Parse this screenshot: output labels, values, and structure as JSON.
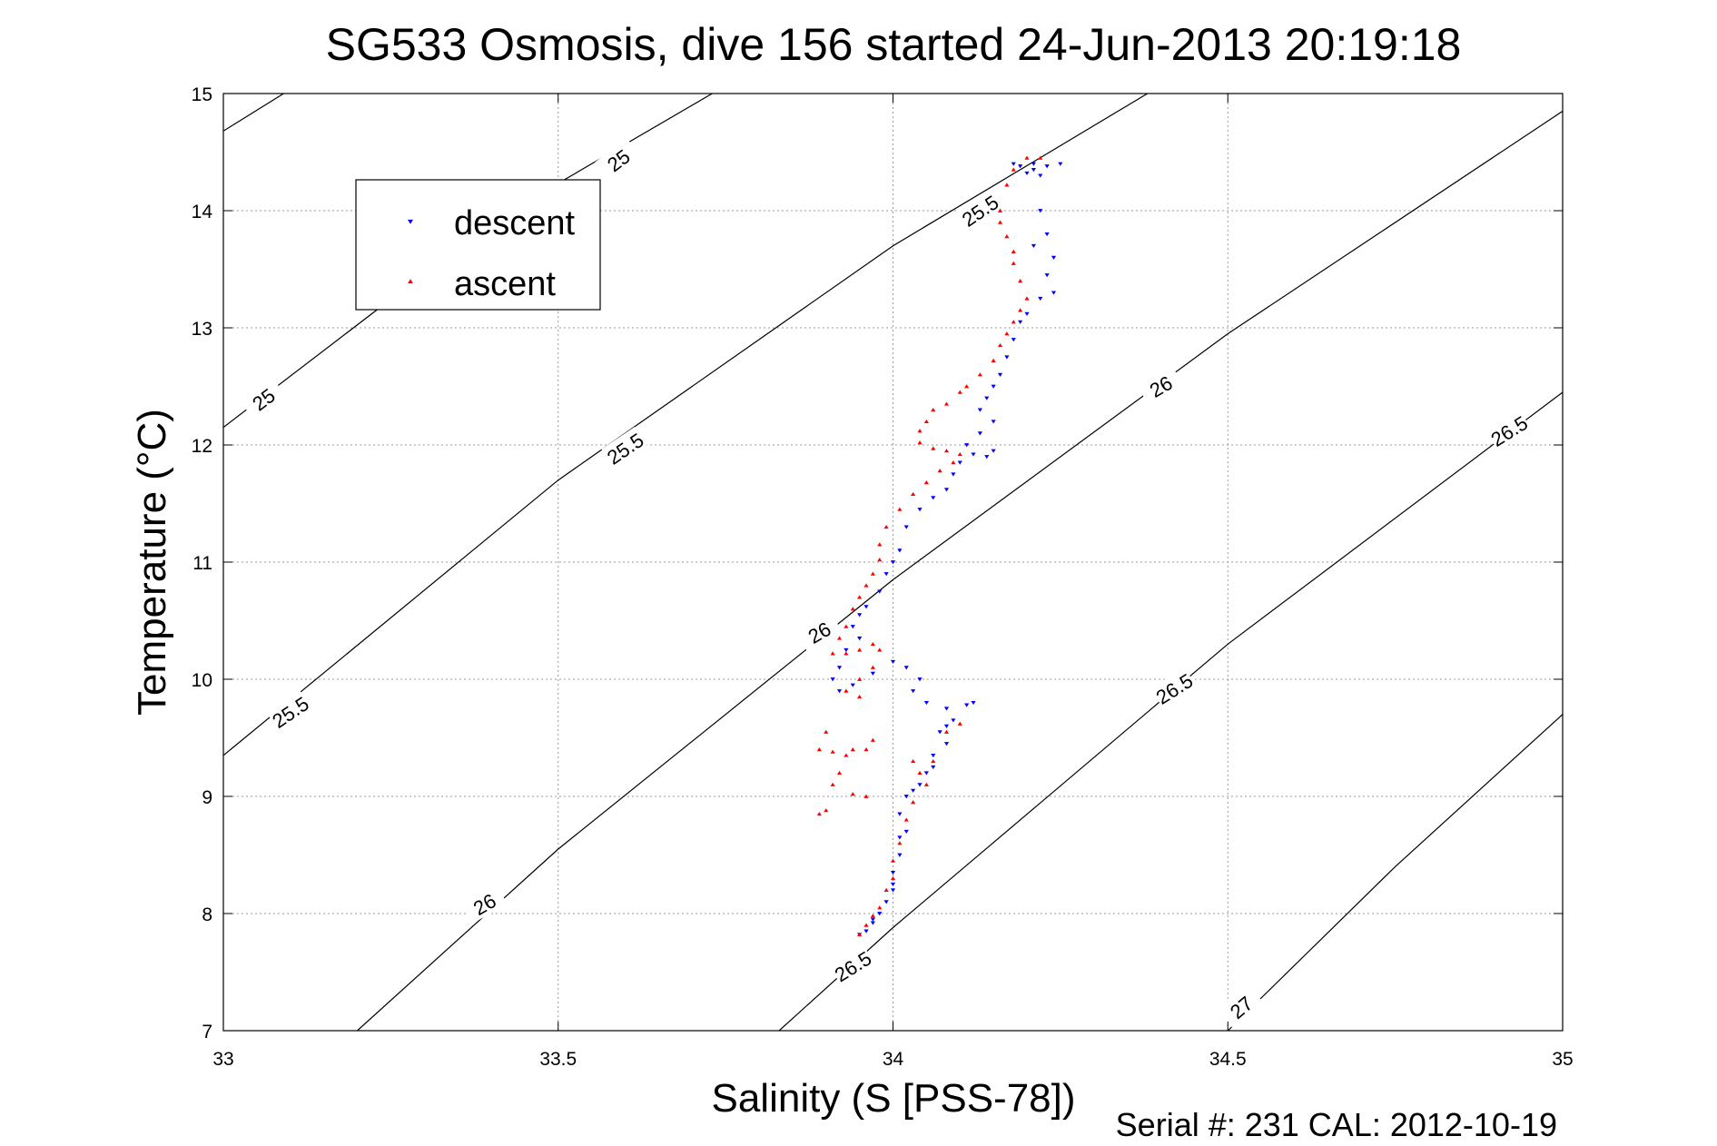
{
  "page": {
    "title": "SG533 Osmosis, dive 156 started 24-Jun-2013 20:19:18",
    "footer": "Serial #: 231  CAL: 2012-10-19"
  },
  "chart_data": {
    "type": "scatter",
    "title": "SG533 Osmosis, dive 156 started 24-Jun-2013 20:19:18",
    "xlabel": "Salinity (S [PSS-78])",
    "ylabel": "Temperature (°C)",
    "xlim": [
      33,
      35
    ],
    "ylim": [
      7,
      15
    ],
    "xticks": [
      33,
      33.5,
      34,
      34.5,
      35
    ],
    "xtick_labels": [
      "33",
      "33.5",
      "34",
      "34.5",
      "35"
    ],
    "yticks": [
      7,
      8,
      9,
      10,
      11,
      12,
      13,
      14,
      15
    ],
    "ytick_labels": [
      "7",
      "8",
      "9",
      "10",
      "11",
      "12",
      "13",
      "14",
      "15"
    ],
    "grid": true,
    "legend": {
      "position": "upper-left",
      "entries": [
        "descent",
        "ascent"
      ]
    },
    "colors": {
      "descent": "#0000ff",
      "ascent": "#ff0000"
    },
    "contours": [
      {
        "level": 25,
        "points": [
          [
            33.0,
            14.68
          ],
          [
            33.09,
            15.0
          ]
        ]
      },
      {
        "level": 25,
        "points": [
          [
            33.0,
            12.15
          ],
          [
            33.4,
            13.9
          ],
          [
            33.73,
            15.0
          ]
        ]
      },
      {
        "level": 25.5,
        "points": [
          [
            33.0,
            9.35
          ],
          [
            33.5,
            11.7
          ],
          [
            34.0,
            13.7
          ],
          [
            34.38,
            15.0
          ]
        ]
      },
      {
        "level": 26,
        "points": [
          [
            33.2,
            7.0
          ],
          [
            33.5,
            8.55
          ],
          [
            34.0,
            10.85
          ],
          [
            34.5,
            12.95
          ],
          [
            35.0,
            14.85
          ]
        ]
      },
      {
        "level": 26.5,
        "points": [
          [
            33.83,
            7.0
          ],
          [
            34.0,
            7.88
          ],
          [
            34.5,
            10.3
          ],
          [
            35.0,
            12.45
          ]
        ]
      },
      {
        "level": 27,
        "points": [
          [
            34.5,
            7.0
          ],
          [
            34.75,
            8.4
          ],
          [
            35.0,
            9.7
          ]
        ]
      }
    ],
    "contour_labels": [
      {
        "level": "25",
        "s": 33.59,
        "t": 14.43,
        "angle": -37
      },
      {
        "level": "25",
        "s": 33.06,
        "t": 12.39,
        "angle": -37
      },
      {
        "level": "25.5",
        "s": 34.13,
        "t": 14.0,
        "angle": -34
      },
      {
        "level": "25.5",
        "s": 33.6,
        "t": 11.97,
        "angle": -34
      },
      {
        "level": "25.5",
        "s": 33.1,
        "t": 9.72,
        "angle": -34
      },
      {
        "level": "26",
        "s": 35.94,
        "t": 15.0,
        "angle": -30
      },
      {
        "level": "26",
        "s": 34.4,
        "t": 12.5,
        "angle": -30
      },
      {
        "level": "26",
        "s": 33.89,
        "t": 10.4,
        "angle": -30
      },
      {
        "level": "26",
        "s": 33.39,
        "t": 8.08,
        "angle": -30
      },
      {
        "level": "26.5",
        "s": 34.92,
        "t": 12.12,
        "angle": -32
      },
      {
        "level": "26.5",
        "s": 34.42,
        "t": 9.92,
        "angle": -32
      },
      {
        "level": "26.5",
        "s": 33.94,
        "t": 7.55,
        "angle": -32
      },
      {
        "level": "27",
        "s": 34.52,
        "t": 7.2,
        "angle": -40
      }
    ],
    "series": [
      {
        "name": "descent",
        "marker": "triangle-down",
        "points": [
          [
            34.21,
            14.4
          ],
          [
            34.19,
            14.38
          ],
          [
            34.2,
            14.32
          ],
          [
            34.23,
            14.38
          ],
          [
            34.25,
            14.4
          ],
          [
            34.22,
            14.3
          ],
          [
            34.21,
            14.35
          ],
          [
            34.18,
            14.4
          ],
          [
            34.22,
            14.0
          ],
          [
            34.23,
            13.8
          ],
          [
            34.21,
            13.7
          ],
          [
            34.24,
            13.6
          ],
          [
            34.23,
            13.45
          ],
          [
            34.24,
            13.3
          ],
          [
            34.22,
            13.25
          ],
          [
            34.2,
            13.12
          ],
          [
            34.19,
            13.05
          ],
          [
            34.18,
            12.9
          ],
          [
            34.17,
            12.75
          ],
          [
            34.16,
            12.6
          ],
          [
            34.15,
            12.5
          ],
          [
            34.14,
            12.4
          ],
          [
            34.13,
            12.3
          ],
          [
            34.15,
            12.2
          ],
          [
            34.13,
            12.1
          ],
          [
            34.11,
            12.0
          ],
          [
            34.12,
            11.92
          ],
          [
            34.14,
            11.9
          ],
          [
            34.15,
            11.95
          ],
          [
            34.1,
            11.85
          ],
          [
            34.09,
            11.75
          ],
          [
            34.08,
            11.62
          ],
          [
            34.06,
            11.55
          ],
          [
            34.04,
            11.45
          ],
          [
            34.02,
            11.3
          ],
          [
            34.01,
            11.1
          ],
          [
            34.0,
            11.0
          ],
          [
            33.99,
            10.9
          ],
          [
            33.98,
            10.75
          ],
          [
            33.96,
            10.62
          ],
          [
            33.95,
            10.55
          ],
          [
            33.94,
            10.45
          ],
          [
            33.95,
            10.35
          ],
          [
            33.93,
            10.25
          ],
          [
            33.92,
            10.1
          ],
          [
            33.91,
            10.0
          ],
          [
            33.92,
            9.9
          ],
          [
            33.94,
            9.95
          ],
          [
            33.97,
            10.05
          ],
          [
            34.0,
            10.15
          ],
          [
            34.02,
            10.1
          ],
          [
            34.04,
            10.0
          ],
          [
            34.03,
            9.9
          ],
          [
            34.05,
            9.8
          ],
          [
            34.08,
            9.75
          ],
          [
            34.11,
            9.78
          ],
          [
            34.12,
            9.8
          ],
          [
            34.09,
            9.65
          ],
          [
            34.07,
            9.55
          ],
          [
            34.08,
            9.45
          ],
          [
            34.06,
            9.35
          ],
          [
            34.05,
            9.2
          ],
          [
            34.04,
            9.1
          ],
          [
            34.02,
            9.0
          ],
          [
            34.01,
            8.85
          ],
          [
            34.01,
            8.65
          ],
          [
            34.01,
            8.5
          ],
          [
            34.0,
            8.35
          ],
          [
            34.0,
            8.2
          ],
          [
            33.99,
            8.1
          ],
          [
            33.98,
            8.0
          ],
          [
            33.97,
            7.95
          ],
          [
            33.96,
            7.85
          ],
          [
            33.95,
            7.82
          ],
          [
            33.97,
            7.92
          ],
          [
            34.0,
            8.25
          ],
          [
            34.02,
            8.7
          ],
          [
            34.03,
            9.05
          ],
          [
            34.06,
            9.25
          ],
          [
            34.08,
            9.6
          ]
        ]
      },
      {
        "name": "ascent",
        "marker": "triangle-up",
        "points": [
          [
            34.2,
            14.45
          ],
          [
            34.22,
            14.45
          ],
          [
            34.18,
            14.35
          ],
          [
            34.17,
            14.22
          ],
          [
            34.16,
            14.0
          ],
          [
            34.16,
            13.9
          ],
          [
            34.17,
            13.78
          ],
          [
            34.18,
            13.65
          ],
          [
            34.18,
            13.55
          ],
          [
            34.19,
            13.4
          ],
          [
            34.2,
            13.25
          ],
          [
            34.19,
            13.15
          ],
          [
            34.18,
            13.05
          ],
          [
            34.17,
            12.95
          ],
          [
            34.16,
            12.85
          ],
          [
            34.15,
            12.72
          ],
          [
            34.13,
            12.6
          ],
          [
            34.11,
            12.5
          ],
          [
            34.1,
            12.45
          ],
          [
            34.08,
            12.35
          ],
          [
            34.06,
            12.3
          ],
          [
            34.05,
            12.2
          ],
          [
            34.04,
            12.12
          ],
          [
            34.04,
            12.02
          ],
          [
            34.06,
            11.97
          ],
          [
            34.08,
            11.95
          ],
          [
            34.1,
            11.92
          ],
          [
            34.09,
            11.85
          ],
          [
            34.07,
            11.78
          ],
          [
            34.05,
            11.68
          ],
          [
            34.03,
            11.58
          ],
          [
            34.01,
            11.45
          ],
          [
            33.99,
            11.3
          ],
          [
            33.98,
            11.15
          ],
          [
            33.98,
            11.02
          ],
          [
            33.97,
            10.9
          ],
          [
            33.96,
            10.8
          ],
          [
            33.95,
            10.7
          ],
          [
            33.94,
            10.6
          ],
          [
            33.93,
            10.45
          ],
          [
            33.92,
            10.35
          ],
          [
            33.91,
            10.22
          ],
          [
            33.93,
            10.22
          ],
          [
            33.95,
            10.25
          ],
          [
            33.97,
            10.3
          ],
          [
            33.98,
            10.25
          ],
          [
            33.97,
            10.1
          ],
          [
            33.95,
            10.0
          ],
          [
            33.93,
            9.9
          ],
          [
            33.95,
            9.85
          ],
          [
            33.9,
            9.55
          ],
          [
            33.89,
            9.4
          ],
          [
            33.91,
            9.38
          ],
          [
            33.93,
            9.35
          ],
          [
            33.94,
            9.4
          ],
          [
            33.96,
            9.4
          ],
          [
            33.97,
            9.48
          ],
          [
            33.91,
            9.1
          ],
          [
            33.92,
            9.2
          ],
          [
            33.94,
            9.02
          ],
          [
            33.96,
            9.0
          ],
          [
            33.89,
            8.85
          ],
          [
            33.9,
            8.88
          ],
          [
            34.03,
            9.3
          ],
          [
            34.04,
            9.2
          ],
          [
            34.05,
            9.1
          ],
          [
            34.06,
            9.3
          ],
          [
            34.08,
            9.55
          ],
          [
            34.1,
            9.62
          ],
          [
            34.03,
            8.95
          ],
          [
            34.02,
            8.8
          ],
          [
            34.01,
            8.6
          ],
          [
            34.0,
            8.45
          ],
          [
            34.0,
            8.3
          ],
          [
            33.99,
            8.2
          ],
          [
            33.98,
            8.05
          ],
          [
            33.97,
            7.98
          ],
          [
            33.96,
            7.9
          ],
          [
            33.95,
            7.82
          ]
        ]
      }
    ]
  }
}
